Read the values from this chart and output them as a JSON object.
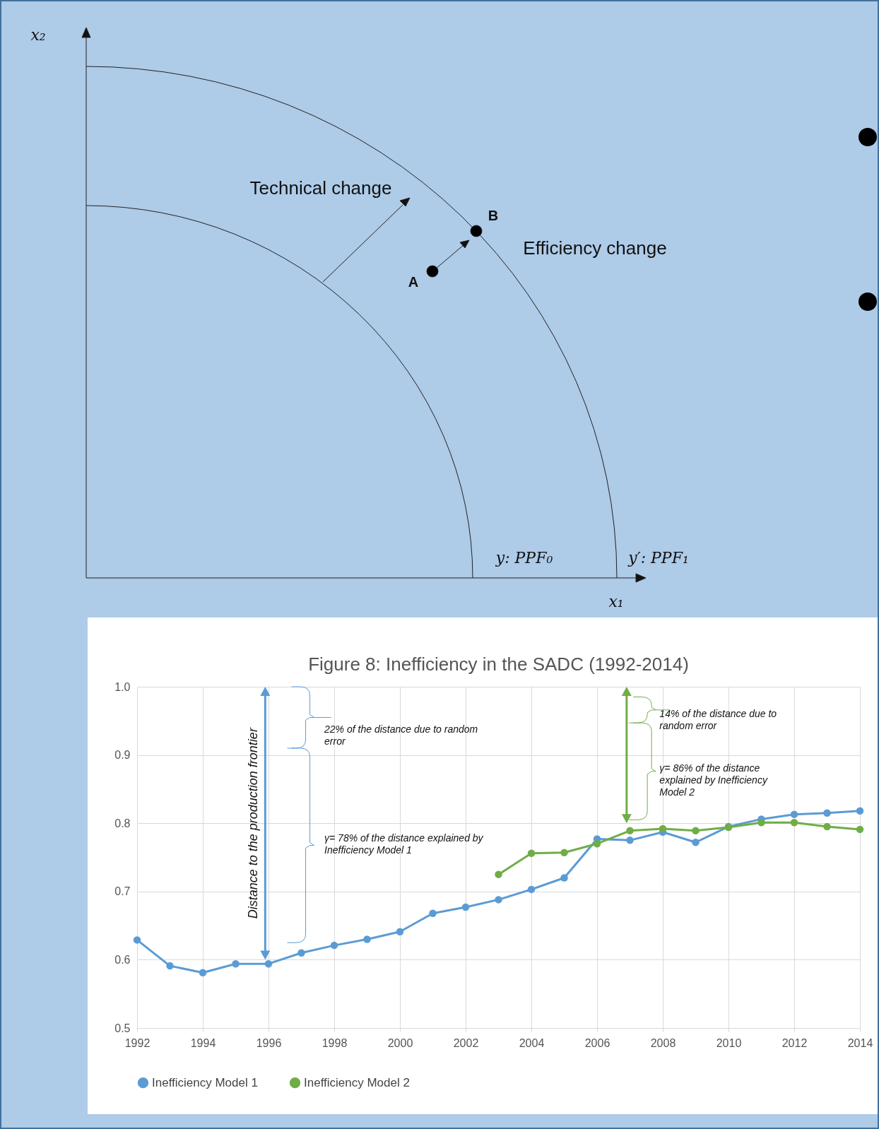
{
  "chart_data": [
    {
      "type": "other",
      "annotations": [
        "x₂",
        "Technical change",
        "B",
        "Efficiency change",
        "A",
        "y: PPF₀",
        "y′: PPF₁",
        "x₁"
      ]
    },
    {
      "type": "line",
      "title": "Figure 8: Inefficiency in the SADC (1992-2014)",
      "marker": "circle",
      "line_style": "solid",
      "grid": true,
      "legend": "bottom",
      "xlim": [
        1992,
        2014
      ],
      "xticks": [
        1992,
        1994,
        1996,
        1998,
        2000,
        2002,
        2004,
        2006,
        2008,
        2010,
        2012,
        2014
      ],
      "ylim": [
        0.5,
        1.0
      ],
      "yticks": [
        {
          "value": 0.5,
          "label": "0.5"
        },
        {
          "value": 0.6,
          "label": "0.6"
        },
        {
          "value": 0.7,
          "label": "0.7"
        },
        {
          "value": 0.8,
          "label": "0.8"
        },
        {
          "value": 0.9,
          "label": "0.9"
        },
        {
          "value": 1.0,
          "label": "1.0"
        }
      ],
      "annotations": [
        "Distance to the production frontier",
        "22% of the distance due to random error",
        "γ= 78% of the distance explained by Inefficiency Model 1",
        "14% of the distance due to random error",
        "γ= 86% of the distance explained by Inefficiency Model 2"
      ],
      "series": [
        {
          "name": "Inefficiency Model 1",
          "color": "#5b9bd5",
          "x": [
            1992,
            1993,
            1994,
            1995,
            1996,
            1997,
            1998,
            1999,
            2000,
            2001,
            2002,
            2003,
            2004,
            2005,
            2006,
            2007,
            2008,
            2009,
            2010,
            2011,
            2012,
            2013,
            2014
          ],
          "values": [
            0.629,
            0.591,
            0.581,
            0.594,
            0.594,
            0.61,
            0.621,
            0.63,
            0.641,
            0.668,
            0.677,
            0.688,
            0.703,
            0.72,
            0.777,
            0.775,
            0.787,
            0.772,
            0.795,
            0.806,
            0.813,
            0.815,
            0.818
          ]
        },
        {
          "name": "Inefficiency Model 2",
          "color": "#70ad47",
          "x": [
            2003,
            2004,
            2005,
            2006,
            2007,
            2008,
            2009,
            2010,
            2011,
            2012,
            2013,
            2014
          ],
          "values": [
            0.725,
            0.756,
            0.757,
            0.77,
            0.789,
            0.792,
            0.789,
            0.794,
            0.801,
            0.801,
            0.795,
            0.791
          ]
        }
      ]
    }
  ]
}
